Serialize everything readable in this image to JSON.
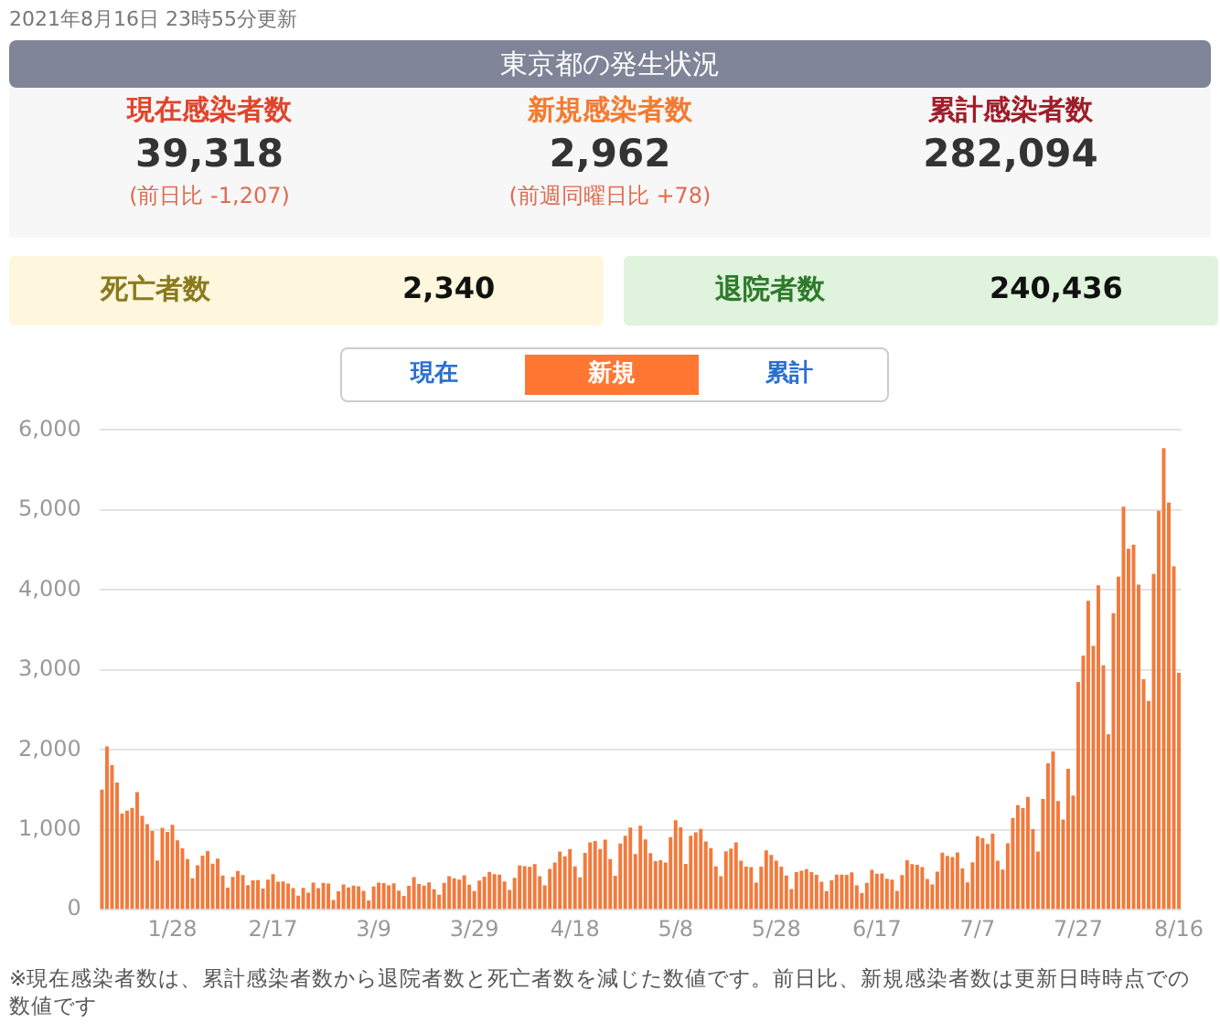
{
  "chart_data": [
    {
      "type": "other",
      "title": "東京都の発生状況",
      "subtitle": "2021年8月16日 23時55分更新",
      "annotations": [
        "現在感染者数",
        "39,318",
        "(前日比 -1,207)",
        "新規感染者数",
        "2,962",
        "(前週同曜日比 +78)",
        "累計感染者数",
        "282,094",
        "死亡者数",
        "2,340",
        "退院者数",
        "240,436"
      ]
    },
    {
      "type": "bar",
      "color": "#f27a3c",
      "grid": "y",
      "ylim": [
        0,
        6000
      ],
      "yticks": [
        {
          "value": 0,
          "label": "0"
        },
        {
          "value": 1000,
          "label": "1,000"
        },
        {
          "value": 2000,
          "label": "2,000"
        },
        {
          "value": 3000,
          "label": "3,000"
        },
        {
          "value": 4000,
          "label": "4,000"
        },
        {
          "value": 5000,
          "label": "5,000"
        },
        {
          "value": 6000,
          "label": "6,000"
        }
      ],
      "annotations": [
        "現在",
        "新規",
        "累計",
        "※現在感染者数は、累計感染者数から退院者数と死亡者数を減じた数値です。前日比、新規感染者数は更新日時時点での数値です"
      ],
      "categories": [
        null,
        null,
        null,
        null,
        null,
        null,
        null,
        null,
        null,
        null,
        null,
        null,
        null,
        null,
        "1/28",
        null,
        null,
        null,
        null,
        null,
        null,
        null,
        null,
        null,
        null,
        null,
        null,
        null,
        null,
        null,
        null,
        null,
        null,
        null,
        "2/17",
        null,
        null,
        null,
        null,
        null,
        null,
        null,
        null,
        null,
        null,
        null,
        null,
        null,
        null,
        null,
        null,
        null,
        null,
        null,
        "3/9",
        null,
        null,
        null,
        null,
        null,
        null,
        null,
        null,
        null,
        null,
        null,
        null,
        null,
        null,
        null,
        null,
        null,
        null,
        null,
        "3/29",
        null,
        null,
        null,
        null,
        null,
        null,
        null,
        null,
        null,
        null,
        null,
        null,
        null,
        null,
        null,
        null,
        null,
        null,
        null,
        "4/18",
        null,
        null,
        null,
        null,
        null,
        null,
        null,
        null,
        null,
        null,
        null,
        null,
        null,
        null,
        null,
        null,
        null,
        null,
        null,
        "5/8",
        null,
        null,
        null,
        null,
        null,
        null,
        null,
        null,
        null,
        null,
        null,
        null,
        null,
        null,
        null,
        null,
        null,
        null,
        null,
        "5/28",
        null,
        null,
        null,
        null,
        null,
        null,
        null,
        null,
        null,
        null,
        null,
        null,
        null,
        null,
        null,
        null,
        null,
        null,
        null,
        "6/17",
        null,
        null,
        null,
        null,
        null,
        null,
        null,
        null,
        null,
        null,
        null,
        null,
        null,
        null,
        null,
        null,
        null,
        null,
        null,
        "7/7",
        null,
        null,
        null,
        null,
        null,
        null,
        null,
        null,
        null,
        null,
        null,
        null,
        null,
        null,
        null,
        null,
        null,
        null,
        null,
        "7/27",
        null,
        null,
        null,
        null,
        null,
        null,
        null,
        null,
        null,
        null,
        null,
        null,
        null,
        null,
        null,
        null,
        null,
        null,
        null,
        "8/16"
      ],
      "values": [
        1502,
        2044,
        1809,
        1592,
        1204,
        1240,
        1274,
        1471,
        1175,
        1070,
        986,
        618,
        1026,
        973,
        1064,
        868,
        769,
        633,
        393,
        556,
        676,
        734,
        577,
        639,
        429,
        276,
        412,
        484,
        434,
        307,
        369,
        371,
        266,
        378,
        445,
        352,
        353,
        327,
        272,
        178,
        275,
        213,
        340,
        270,
        337,
        329,
        121,
        232,
        316,
        279,
        301,
        293,
        237,
        116,
        290,
        340,
        335,
        304,
        330,
        239,
        175,
        300,
        409,
        323,
        303,
        342,
        256,
        187,
        337,
        420,
        394,
        376,
        430,
        313,
        234,
        364,
        414,
        475,
        446,
        440,
        355,
        249,
        399,
        555,
        545,
        537,
        570,
        421,
        306,
        510,
        591,
        729,
        667,
        759,
        543,
        405,
        711,
        843,
        861,
        759,
        876,
        635,
        425,
        828,
        925,
        1027,
        698,
        1050,
        879,
        708,
        609,
        621,
        591,
        907,
        1121,
        1032,
        573,
        925,
        969,
        1010,
        854,
        772,
        542,
        419,
        732,
        766,
        843,
        614,
        540,
        535,
        340,
        539,
        743,
        684,
        614,
        539,
        428,
        260,
        471,
        487,
        508,
        472,
        436,
        351,
        235,
        369,
        440,
        439,
        436,
        467,
        304,
        209,
        337,
        501,
        452,
        453,
        388,
        376,
        236,
        435,
        619,
        570,
        562,
        534,
        386,
        317,
        476,
        714,
        673,
        660,
        716,
        518,
        342,
        593,
        920,
        896,
        822,
        950,
        614,
        502,
        830,
        1149,
        1308,
        1271,
        1410,
        1008,
        727,
        1387,
        1832,
        1979,
        1359,
        1128,
        1763,
        1429,
        2848,
        3177,
        3865,
        3300,
        4058,
        3058,
        2195,
        3709,
        4166,
        5042,
        4515,
        4566,
        4066,
        2884,
        2612,
        4200,
        4989,
        5773,
        5094,
        4295,
        2962
      ]
    }
  ]
}
